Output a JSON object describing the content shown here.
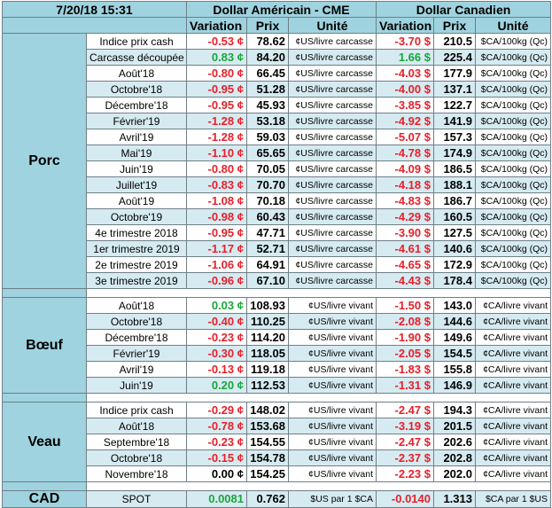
{
  "header": {
    "datetime": "7/20/18 15:31",
    "usd_group": "Dollar Américain - CME",
    "cad_group": "Dollar Canadien",
    "col_variation": "Variation",
    "col_prix": "Prix",
    "col_unite": "Unité"
  },
  "colors": {
    "header_bg": "#9fd3df",
    "stripe": "#d6ebf1",
    "negative": "#e8202a",
    "positive": "#1aa53a"
  },
  "sections": [
    {
      "name": "Porc",
      "rows": [
        {
          "label": "Indice prix cash",
          "usd_var": "-0.53 ¢",
          "usd_sign": "neg",
          "usd_prix": "78.62",
          "usd_unit": "¢US/livre carcasse",
          "cad_var": "-3.70 $",
          "cad_sign": "neg",
          "cad_prix": "210.5",
          "cad_unit": "$CA/100kg (Qc)"
        },
        {
          "label": "Carcasse découpée",
          "usd_var": "0.83 ¢",
          "usd_sign": "pos",
          "usd_prix": "84.20",
          "usd_unit": "¢US/livre carcasse",
          "cad_var": "1.66 $",
          "cad_sign": "pos",
          "cad_prix": "225.4",
          "cad_unit": "$CA/100kg (Qc)"
        },
        {
          "label": "Août'18",
          "usd_var": "-0.80 ¢",
          "usd_sign": "neg",
          "usd_prix": "66.45",
          "usd_unit": "¢US/livre carcasse",
          "cad_var": "-4.03 $",
          "cad_sign": "neg",
          "cad_prix": "177.9",
          "cad_unit": "$CA/100kg (Qc)"
        },
        {
          "label": "Octobre'18",
          "usd_var": "-0.95 ¢",
          "usd_sign": "neg",
          "usd_prix": "51.28",
          "usd_unit": "¢US/livre carcasse",
          "cad_var": "-4.00 $",
          "cad_sign": "neg",
          "cad_prix": "137.1",
          "cad_unit": "$CA/100kg (Qc)"
        },
        {
          "label": "Décembre'18",
          "usd_var": "-0.95 ¢",
          "usd_sign": "neg",
          "usd_prix": "45.93",
          "usd_unit": "¢US/livre carcasse",
          "cad_var": "-3.85 $",
          "cad_sign": "neg",
          "cad_prix": "122.7",
          "cad_unit": "$CA/100kg (Qc)"
        },
        {
          "label": "Février'19",
          "usd_var": "-1.28 ¢",
          "usd_sign": "neg",
          "usd_prix": "53.18",
          "usd_unit": "¢US/livre carcasse",
          "cad_var": "-4.92 $",
          "cad_sign": "neg",
          "cad_prix": "141.9",
          "cad_unit": "$CA/100kg (Qc)"
        },
        {
          "label": "Avril'19",
          "usd_var": "-1.28 ¢",
          "usd_sign": "neg",
          "usd_prix": "59.03",
          "usd_unit": "¢US/livre carcasse",
          "cad_var": "-5.07 $",
          "cad_sign": "neg",
          "cad_prix": "157.3",
          "cad_unit": "$CA/100kg (Qc)"
        },
        {
          "label": "Mai'19",
          "usd_var": "-1.10 ¢",
          "usd_sign": "neg",
          "usd_prix": "65.65",
          "usd_unit": "¢US/livre carcasse",
          "cad_var": "-4.78 $",
          "cad_sign": "neg",
          "cad_prix": "174.9",
          "cad_unit": "$CA/100kg (Qc)"
        },
        {
          "label": "Juin'19",
          "usd_var": "-0.80 ¢",
          "usd_sign": "neg",
          "usd_prix": "70.05",
          "usd_unit": "¢US/livre carcasse",
          "cad_var": "-4.09 $",
          "cad_sign": "neg",
          "cad_prix": "186.5",
          "cad_unit": "$CA/100kg (Qc)"
        },
        {
          "label": "Juillet'19",
          "usd_var": "-0.83 ¢",
          "usd_sign": "neg",
          "usd_prix": "70.70",
          "usd_unit": "¢US/livre carcasse",
          "cad_var": "-4.18 $",
          "cad_sign": "neg",
          "cad_prix": "188.1",
          "cad_unit": "$CA/100kg (Qc)"
        },
        {
          "label": "Août'19",
          "usd_var": "-1.08 ¢",
          "usd_sign": "neg",
          "usd_prix": "70.18",
          "usd_unit": "¢US/livre carcasse",
          "cad_var": "-4.83 $",
          "cad_sign": "neg",
          "cad_prix": "186.7",
          "cad_unit": "$CA/100kg (Qc)"
        },
        {
          "label": "Octobre'19",
          "usd_var": "-0.98 ¢",
          "usd_sign": "neg",
          "usd_prix": "60.43",
          "usd_unit": "¢US/livre carcasse",
          "cad_var": "-4.29 $",
          "cad_sign": "neg",
          "cad_prix": "160.5",
          "cad_unit": "$CA/100kg (Qc)"
        },
        {
          "label": "4e trimestre 2018",
          "usd_var": "-0.95 ¢",
          "usd_sign": "neg",
          "usd_prix": "47.71",
          "usd_unit": "¢US/livre carcasse",
          "cad_var": "-3.90 $",
          "cad_sign": "neg",
          "cad_prix": "127.5",
          "cad_unit": "$CA/100kg (Qc)"
        },
        {
          "label": "1er trimestre 2019",
          "usd_var": "-1.17 ¢",
          "usd_sign": "neg",
          "usd_prix": "52.71",
          "usd_unit": "¢US/livre carcasse",
          "cad_var": "-4.61 $",
          "cad_sign": "neg",
          "cad_prix": "140.6",
          "cad_unit": "$CA/100kg (Qc)"
        },
        {
          "label": "2e trimestre 2019",
          "usd_var": "-1.06 ¢",
          "usd_sign": "neg",
          "usd_prix": "64.91",
          "usd_unit": "¢US/livre carcasse",
          "cad_var": "-4.65 $",
          "cad_sign": "neg",
          "cad_prix": "172.9",
          "cad_unit": "$CA/100kg (Qc)"
        },
        {
          "label": "3e trimestre 2019",
          "usd_var": "-0.96 ¢",
          "usd_sign": "neg",
          "usd_prix": "67.10",
          "usd_unit": "¢US/livre carcasse",
          "cad_var": "-4.43 $",
          "cad_sign": "neg",
          "cad_prix": "178.4",
          "cad_unit": "$CA/100kg (Qc)"
        }
      ]
    },
    {
      "name": "Bœuf",
      "rows": [
        {
          "label": "Août'18",
          "usd_var": "0.03 ¢",
          "usd_sign": "pos",
          "usd_prix": "108.93",
          "usd_unit": "¢US/livre vivant",
          "cad_var": "-1.50 $",
          "cad_sign": "neg",
          "cad_prix": "143.0",
          "cad_unit": "¢CA/livre vivant"
        },
        {
          "label": "Octobre'18",
          "usd_var": "-0.40 ¢",
          "usd_sign": "neg",
          "usd_prix": "110.25",
          "usd_unit": "¢US/livre vivant",
          "cad_var": "-2.08 $",
          "cad_sign": "neg",
          "cad_prix": "144.6",
          "cad_unit": "¢CA/livre vivant"
        },
        {
          "label": "Décembre'18",
          "usd_var": "-0.23 ¢",
          "usd_sign": "neg",
          "usd_prix": "114.20",
          "usd_unit": "¢US/livre vivant",
          "cad_var": "-1.90 $",
          "cad_sign": "neg",
          "cad_prix": "149.6",
          "cad_unit": "¢CA/livre vivant"
        },
        {
          "label": "Février'19",
          "usd_var": "-0.30 ¢",
          "usd_sign": "neg",
          "usd_prix": "118.05",
          "usd_unit": "¢US/livre vivant",
          "cad_var": "-2.05 $",
          "cad_sign": "neg",
          "cad_prix": "154.5",
          "cad_unit": "¢CA/livre vivant"
        },
        {
          "label": "Avril'19",
          "usd_var": "-0.13 ¢",
          "usd_sign": "neg",
          "usd_prix": "119.18",
          "usd_unit": "¢US/livre vivant",
          "cad_var": "-1.83 $",
          "cad_sign": "neg",
          "cad_prix": "155.8",
          "cad_unit": "¢CA/livre vivant"
        },
        {
          "label": "Juin'19",
          "usd_var": "0.20 ¢",
          "usd_sign": "pos",
          "usd_prix": "112.53",
          "usd_unit": "¢US/livre vivant",
          "cad_var": "-1.31 $",
          "cad_sign": "neg",
          "cad_prix": "146.9",
          "cad_unit": "¢CA/livre vivant"
        }
      ]
    },
    {
      "name": "Veau",
      "rows": [
        {
          "label": "Indice prix cash",
          "usd_var": "-0.29 ¢",
          "usd_sign": "neg",
          "usd_prix": "148.02",
          "usd_unit": "¢US/livre vivant",
          "cad_var": "-2.47 $",
          "cad_sign": "neg",
          "cad_prix": "194.3",
          "cad_unit": "¢CA/livre vivant"
        },
        {
          "label": "Août'18",
          "usd_var": "-0.78 ¢",
          "usd_sign": "neg",
          "usd_prix": "153.68",
          "usd_unit": "¢US/livre vivant",
          "cad_var": "-3.19 $",
          "cad_sign": "neg",
          "cad_prix": "201.5",
          "cad_unit": "¢CA/livre vivant"
        },
        {
          "label": "Septembre'18",
          "usd_var": "-0.23 ¢",
          "usd_sign": "neg",
          "usd_prix": "154.55",
          "usd_unit": "¢US/livre vivant",
          "cad_var": "-2.47 $",
          "cad_sign": "neg",
          "cad_prix": "202.6",
          "cad_unit": "¢CA/livre vivant"
        },
        {
          "label": "Octobre'18",
          "usd_var": "-0.15 ¢",
          "usd_sign": "neg",
          "usd_prix": "154.78",
          "usd_unit": "¢US/livre vivant",
          "cad_var": "-2.37 $",
          "cad_sign": "neg",
          "cad_prix": "202.8",
          "cad_unit": "¢CA/livre vivant"
        },
        {
          "label": "Novembre'18",
          "usd_var": "0.00 ¢",
          "usd_sign": "zero",
          "usd_prix": "154.25",
          "usd_unit": "¢US/livre vivant",
          "cad_var": "-2.23 $",
          "cad_sign": "neg",
          "cad_prix": "202.0",
          "cad_unit": "¢CA/livre vivant"
        }
      ]
    }
  ],
  "cad": {
    "name": "CAD",
    "label": "SPOT",
    "usd_var": "0.0081",
    "usd_sign": "pos",
    "usd_prix": "0.762",
    "usd_unit": "$US par 1 $CA",
    "cad_var": "-0.0140",
    "cad_sign": "neg",
    "cad_prix": "1.313",
    "cad_unit": "$CA par 1 $US"
  }
}
